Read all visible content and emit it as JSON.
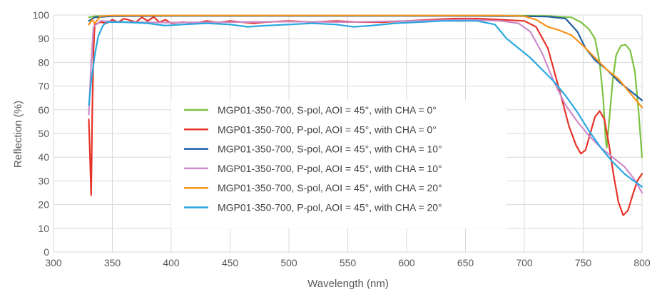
{
  "chart_data": {
    "type": "line",
    "title": "",
    "xlabel": "Wavelength (nm)",
    "ylabel": "Reflection (%)",
    "xlim": [
      300,
      800
    ],
    "ylim": [
      0,
      100
    ],
    "xticks": [
      300,
      350,
      400,
      450,
      500,
      550,
      600,
      650,
      700,
      750,
      800
    ],
    "yticks": [
      0,
      10,
      20,
      30,
      40,
      50,
      60,
      70,
      80,
      90,
      100
    ],
    "grid": true,
    "legend_position": "center",
    "series": [
      {
        "name": "MGP01-350-700, S-pol, AOI = 45°, with CHA = 0°",
        "color": "#7DC242",
        "points": [
          [
            330,
            99.0
          ],
          [
            335,
            99.5
          ],
          [
            350,
            99.7
          ],
          [
            400,
            99.8
          ],
          [
            450,
            99.8
          ],
          [
            500,
            99.8
          ],
          [
            550,
            99.8
          ],
          [
            600,
            99.8
          ],
          [
            650,
            99.8
          ],
          [
            700,
            99.7
          ],
          [
            720,
            99.6
          ],
          [
            740,
            99.0
          ],
          [
            748,
            97.0
          ],
          [
            755,
            94.0
          ],
          [
            760,
            90.0
          ],
          [
            764,
            80.0
          ],
          [
            767,
            65.0
          ],
          [
            769,
            48.0
          ],
          [
            770,
            44.0
          ],
          [
            772,
            55.0
          ],
          [
            775,
            72.0
          ],
          [
            778,
            83.0
          ],
          [
            782,
            87.0
          ],
          [
            786,
            87.5
          ],
          [
            790,
            85.0
          ],
          [
            794,
            76.0
          ],
          [
            797,
            60.0
          ],
          [
            800,
            40.0
          ]
        ]
      },
      {
        "name": "MGP01-350-700, P-pol, AOI = 45°, with CHA = 0°",
        "color": "#E63329",
        "points": [
          [
            330,
            56.0
          ],
          [
            331,
            40.0
          ],
          [
            332,
            24.0
          ],
          [
            333,
            60.0
          ],
          [
            334,
            85.0
          ],
          [
            335,
            96.0
          ],
          [
            340,
            97.0
          ],
          [
            345,
            96.5
          ],
          [
            350,
            98.0
          ],
          [
            355,
            97.0
          ],
          [
            360,
            98.5
          ],
          [
            370,
            97.0
          ],
          [
            375,
            99.0
          ],
          [
            380,
            97.5
          ],
          [
            385,
            99.2
          ],
          [
            390,
            97.0
          ],
          [
            395,
            98.0
          ],
          [
            400,
            96.5
          ],
          [
            410,
            97.0
          ],
          [
            420,
            96.5
          ],
          [
            430,
            97.5
          ],
          [
            440,
            96.8
          ],
          [
            450,
            97.5
          ],
          [
            460,
            97.0
          ],
          [
            470,
            96.5
          ],
          [
            480,
            97.0
          ],
          [
            500,
            97.5
          ],
          [
            520,
            97.0
          ],
          [
            540,
            97.5
          ],
          [
            560,
            97.0
          ],
          [
            580,
            97.0
          ],
          [
            600,
            97.5
          ],
          [
            620,
            98.0
          ],
          [
            640,
            98.5
          ],
          [
            660,
            98.5
          ],
          [
            680,
            98.0
          ],
          [
            700,
            97.5
          ],
          [
            710,
            95.0
          ],
          [
            720,
            86.0
          ],
          [
            730,
            68.0
          ],
          [
            738,
            53.0
          ],
          [
            744,
            45.0
          ],
          [
            748,
            41.5
          ],
          [
            752,
            43.0
          ],
          [
            756,
            50.0
          ],
          [
            760,
            57.0
          ],
          [
            764,
            59.5
          ],
          [
            768,
            56.0
          ],
          [
            772,
            45.0
          ],
          [
            776,
            32.0
          ],
          [
            780,
            21.0
          ],
          [
            784,
            15.5
          ],
          [
            788,
            17.5
          ],
          [
            792,
            24.0
          ],
          [
            796,
            30.0
          ],
          [
            800,
            33.0
          ]
        ]
      },
      {
        "name": "MGP01-350-700, S-pol, AOI = 45°, with CHA = 10°",
        "color": "#1F5FA0",
        "points": [
          [
            330,
            97.5
          ],
          [
            335,
            99.0
          ],
          [
            350,
            99.5
          ],
          [
            400,
            99.6
          ],
          [
            450,
            99.6
          ],
          [
            500,
            99.6
          ],
          [
            550,
            99.6
          ],
          [
            600,
            99.6
          ],
          [
            650,
            99.6
          ],
          [
            700,
            99.5
          ],
          [
            720,
            99.3
          ],
          [
            735,
            98.5
          ],
          [
            745,
            93.0
          ],
          [
            752,
            86.0
          ],
          [
            760,
            81.0
          ],
          [
            770,
            77.0
          ],
          [
            780,
            72.0
          ],
          [
            790,
            68.0
          ],
          [
            800,
            64.0
          ]
        ]
      },
      {
        "name": "MGP01-350-700, P-pol, AOI = 45°, with CHA = 10°",
        "color": "#CC8BC9",
        "points": [
          [
            330,
            58.0
          ],
          [
            332,
            80.0
          ],
          [
            334,
            95.0
          ],
          [
            340,
            97.5
          ],
          [
            360,
            97.0
          ],
          [
            400,
            96.8
          ],
          [
            450,
            97.0
          ],
          [
            500,
            97.2
          ],
          [
            550,
            97.0
          ],
          [
            600,
            97.5
          ],
          [
            650,
            98.0
          ],
          [
            680,
            97.5
          ],
          [
            695,
            96.5
          ],
          [
            705,
            93.0
          ],
          [
            715,
            84.0
          ],
          [
            725,
            72.0
          ],
          [
            735,
            62.0
          ],
          [
            745,
            55.0
          ],
          [
            755,
            49.0
          ],
          [
            765,
            44.0
          ],
          [
            775,
            40.0
          ],
          [
            785,
            36.0
          ],
          [
            793,
            31.0
          ],
          [
            800,
            25.0
          ]
        ]
      },
      {
        "name": "MGP01-350-700, S-pol, AOI = 45°, with CHA = 20°",
        "color": "#F7941D",
        "points": [
          [
            330,
            96.0
          ],
          [
            333,
            98.0
          ],
          [
            335,
            96.5
          ],
          [
            340,
            99.5
          ],
          [
            350,
            99.8
          ],
          [
            400,
            99.8
          ],
          [
            450,
            99.8
          ],
          [
            500,
            99.8
          ],
          [
            550,
            99.8
          ],
          [
            600,
            99.8
          ],
          [
            650,
            99.8
          ],
          [
            680,
            99.8
          ],
          [
            700,
            99.5
          ],
          [
            710,
            98.0
          ],
          [
            720,
            95.0
          ],
          [
            730,
            93.5
          ],
          [
            740,
            91.5
          ],
          [
            750,
            87.0
          ],
          [
            760,
            82.0
          ],
          [
            770,
            77.0
          ],
          [
            780,
            73.0
          ],
          [
            790,
            67.0
          ],
          [
            800,
            61.0
          ]
        ]
      },
      {
        "name": "MGP01-350-700, P-pol, AOI = 45°, with CHA = 20°",
        "color": "#29A8E0",
        "points": [
          [
            330,
            62.0
          ],
          [
            332,
            72.0
          ],
          [
            335,
            83.0
          ],
          [
            338,
            91.0
          ],
          [
            342,
            95.5
          ],
          [
            345,
            97.0
          ],
          [
            350,
            97.0
          ],
          [
            360,
            97.0
          ],
          [
            380,
            96.5
          ],
          [
            395,
            95.5
          ],
          [
            410,
            96.0
          ],
          [
            430,
            96.5
          ],
          [
            450,
            96.0
          ],
          [
            465,
            95.0
          ],
          [
            480,
            95.5
          ],
          [
            500,
            96.0
          ],
          [
            520,
            96.5
          ],
          [
            540,
            96.0
          ],
          [
            555,
            95.0
          ],
          [
            570,
            95.5
          ],
          [
            590,
            96.5
          ],
          [
            610,
            97.0
          ],
          [
            630,
            97.5
          ],
          [
            660,
            97.5
          ],
          [
            675,
            96.0
          ],
          [
            685,
            90.0
          ],
          [
            695,
            86.0
          ],
          [
            705,
            82.0
          ],
          [
            715,
            77.0
          ],
          [
            725,
            72.0
          ],
          [
            735,
            66.0
          ],
          [
            745,
            59.0
          ],
          [
            755,
            51.0
          ],
          [
            765,
            44.0
          ],
          [
            775,
            38.0
          ],
          [
            785,
            33.0
          ],
          [
            793,
            30.0
          ],
          [
            800,
            27.5
          ]
        ]
      }
    ]
  }
}
